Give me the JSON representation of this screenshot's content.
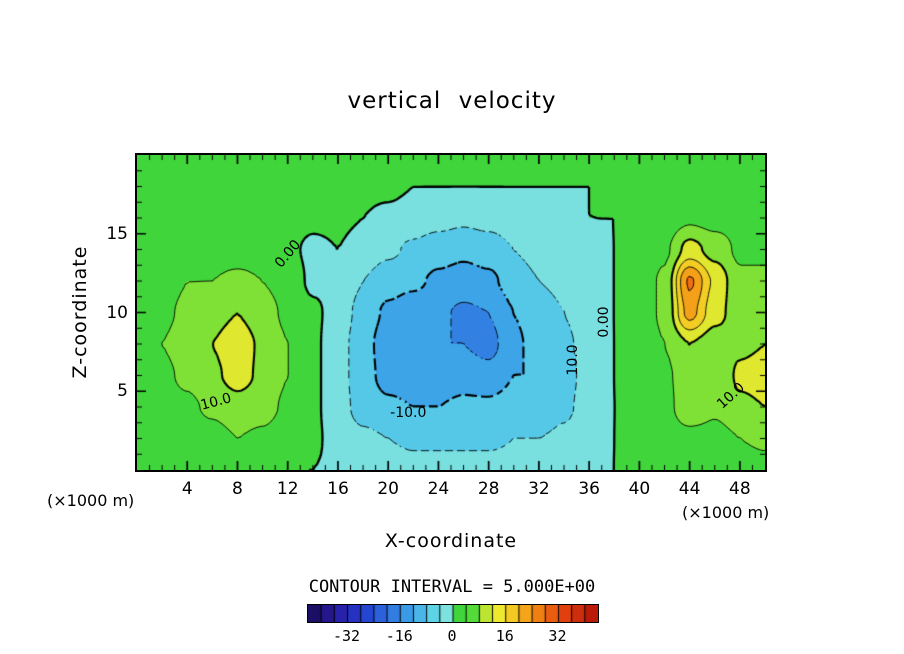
{
  "title": "vertical velocity",
  "axes": {
    "x_label": "X-coordinate",
    "z_label": "Z-coordinate",
    "x_unit_left": "(×1000 m)",
    "x_unit_right": "(×1000 m)",
    "x_ticks": [
      4,
      8,
      12,
      16,
      20,
      24,
      28,
      32,
      36,
      40,
      44,
      48
    ],
    "z_ticks": [
      5,
      10,
      15
    ]
  },
  "contour_note": "CONTOUR INTERVAL = 5.000E+00",
  "colorbar": {
    "min": -44,
    "max": 44,
    "step": 4,
    "tick_values": [
      -32,
      -16,
      0,
      16,
      32
    ],
    "tick_labels": [
      "-32",
      "-16",
      "0",
      "16",
      "32"
    ]
  },
  "contour_labels": [
    {
      "text": "0.00",
      "x": 12.0,
      "z": 13.7,
      "rot": -50
    },
    {
      "text": "10.0",
      "x": 6.3,
      "z": 4.3,
      "rot": -15
    },
    {
      "text": "-10.0",
      "x": 21.6,
      "z": 3.6,
      "rot": 0
    },
    {
      "text": "10.0",
      "x": 34.7,
      "z": 7.0,
      "rot": -90
    },
    {
      "text": "0.00",
      "x": 37.2,
      "z": 9.4,
      "rot": -90
    },
    {
      "text": "10.0",
      "x": 47.3,
      "z": 4.7,
      "rot": -42
    }
  ],
  "chart_data": {
    "type": "heatmap",
    "subtype": "filled-contour",
    "title": "vertical velocity",
    "xlabel": "X-coordinate (×1000 m)",
    "ylabel": "Z-coordinate (×1000 m)",
    "xlim": [
      0,
      50
    ],
    "zlim": [
      0,
      20
    ],
    "contour_interval": 5,
    "contour_levels": [
      -20,
      -15,
      -10,
      -5,
      0,
      5,
      10,
      15,
      20,
      25
    ],
    "x": [
      0,
      2,
      4,
      6,
      8,
      10,
      12,
      14,
      16,
      18,
      20,
      22,
      24,
      26,
      28,
      30,
      32,
      34,
      36,
      38,
      40,
      42,
      44,
      46,
      48,
      50
    ],
    "z": [
      0,
      2,
      4,
      6,
      8,
      10,
      12,
      14,
      16,
      18,
      20
    ],
    "values": [
      [
        0,
        1,
        0,
        1,
        2,
        1,
        0,
        0,
        -1,
        -2,
        -2,
        -3,
        -3,
        -3,
        -3,
        -3,
        -2,
        -2,
        -1,
        0,
        1,
        0,
        1,
        2,
        2,
        3
      ],
      [
        1,
        2,
        2,
        3,
        5,
        4,
        2,
        1,
        -2,
        -4,
        -5,
        -6,
        -6,
        -6,
        -6,
        -5,
        -5,
        -4,
        -2,
        0,
        1,
        2,
        3,
        3,
        5,
        6
      ],
      [
        2,
        3,
        4,
        6,
        8,
        7,
        4,
        1,
        -3,
        -7,
        -9,
        -10,
        -10,
        -9,
        -9,
        -8,
        -9,
        -6,
        -3,
        0,
        1,
        3,
        9,
        6,
        9,
        10
      ],
      [
        3,
        4,
        6,
        9,
        12,
        9,
        5,
        1,
        -3,
        -8,
        -12,
        -13,
        -13,
        -12,
        -13,
        -10,
        -10,
        -7,
        -3,
        0,
        2,
        4,
        8,
        5,
        11,
        12
      ],
      [
        3,
        5,
        7,
        10,
        13,
        9,
        5,
        1,
        -3,
        -8,
        -13,
        -14,
        -15,
        -15,
        -17,
        -11,
        -8,
        -6,
        -3,
        0,
        2,
        5,
        10,
        7,
        9,
        10
      ],
      [
        2,
        4,
        6,
        8,
        10,
        7,
        4,
        1,
        -2,
        -7,
        -11,
        -13,
        -14,
        -16,
        -15,
        -10,
        -7,
        -5,
        -2,
        0,
        2,
        6,
        22,
        12,
        7,
        8
      ],
      [
        2,
        3,
        5,
        5,
        6,
        5,
        3,
        -1,
        -1,
        -5,
        -8,
        -9,
        -11,
        -12,
        -11,
        -8,
        -5,
        -4,
        -2,
        0,
        2,
        6,
        26,
        14,
        6,
        6
      ],
      [
        1,
        2,
        3,
        3,
        3,
        3,
        1,
        -1,
        0,
        -2,
        -4,
        -6,
        -8,
        -9,
        -8,
        -5,
        -3,
        -2,
        -1,
        0,
        1,
        4,
        12,
        8,
        4,
        4
      ],
      [
        1,
        1,
        2,
        2,
        2,
        2,
        2,
        1,
        1,
        0,
        -1,
        -2,
        -3,
        -4,
        -3,
        -2,
        -1,
        -1,
        0,
        0,
        1,
        2,
        4,
        3,
        3,
        3
      ],
      [
        1,
        1,
        1,
        1,
        1,
        1,
        1,
        1,
        1,
        1,
        1,
        0,
        0,
        0,
        0,
        0,
        0,
        0,
        0,
        1,
        1,
        1,
        2,
        2,
        2,
        2
      ],
      [
        1,
        1,
        1,
        1,
        1,
        1,
        1,
        1,
        1,
        1,
        1,
        1,
        1,
        1,
        1,
        1,
        1,
        1,
        1,
        1,
        1,
        1,
        1,
        1,
        1,
        1
      ]
    ],
    "colormap_stops": [
      [
        -44,
        "#140a52"
      ],
      [
        -36,
        "#2a1a9e"
      ],
      [
        -28,
        "#2238cc"
      ],
      [
        -20,
        "#2e6ee0"
      ],
      [
        -12,
        "#3fa8e8"
      ],
      [
        -6,
        "#5ed3e6"
      ],
      [
        -0.01,
        "#8ce8da"
      ],
      [
        0.01,
        "#3cd23c"
      ],
      [
        5.5,
        "#44da3a"
      ],
      [
        8,
        "#8ee234"
      ],
      [
        11,
        "#d2e630"
      ],
      [
        14,
        "#eee82e"
      ],
      [
        18,
        "#f4c922"
      ],
      [
        23,
        "#f49c18"
      ],
      [
        28,
        "#ee6b12"
      ],
      [
        34,
        "#e0400e"
      ],
      [
        44,
        "#b01208"
      ]
    ]
  }
}
